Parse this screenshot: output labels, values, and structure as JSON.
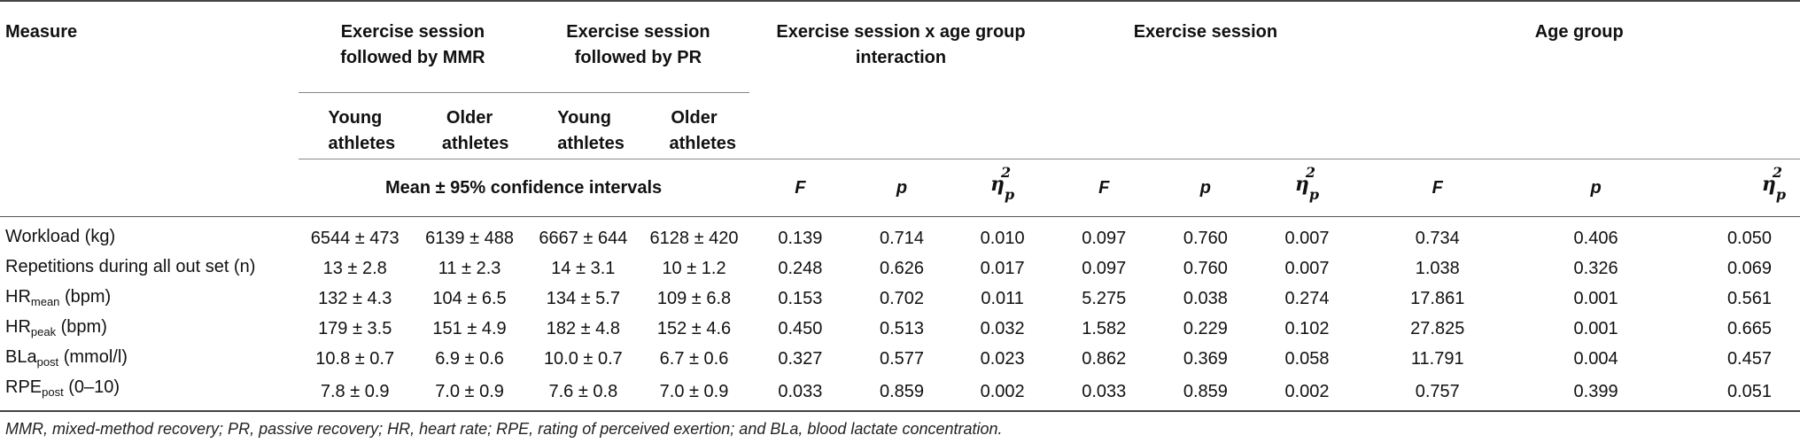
{
  "headers": {
    "measure": "Measure",
    "group_mmr": "Exercise session followed by MMR",
    "group_pr": "Exercise session followed by PR",
    "interaction": "Exercise session x age group interaction",
    "session": "Exercise session",
    "age": "Age group",
    "young": "Young athletes",
    "older": "Older athletes",
    "mean_ci": "Mean ± 95% confidence intervals",
    "F": "F",
    "p": "p",
    "eta": "η",
    "eta_sup": "2",
    "eta_sub": "p"
  },
  "rows": [
    {
      "label": "Workload (kg)",
      "label_sub": "",
      "label_suffix": "",
      "mmr_young": "6544 ± 473",
      "mmr_older": "6139 ± 488",
      "pr_young": "6667 ± 644",
      "pr_older": "6128 ± 420",
      "int_F": "0.139",
      "int_p": "0.714",
      "int_eta": "0.010",
      "ses_F": "0.097",
      "ses_p": "0.760",
      "ses_eta": "0.007",
      "age_F": "0.734",
      "age_p": "0.406",
      "age_eta": "0.050"
    },
    {
      "label": "Repetitions during all out set (n)",
      "label_sub": "",
      "label_suffix": "",
      "mmr_young": "13 ± 2.8",
      "mmr_older": "11 ± 2.3",
      "pr_young": "14 ± 3.1",
      "pr_older": "10 ± 1.2",
      "int_F": "0.248",
      "int_p": "0.626",
      "int_eta": "0.017",
      "ses_F": "0.097",
      "ses_p": "0.760",
      "ses_eta": "0.007",
      "age_F": "1.038",
      "age_p": "0.326",
      "age_eta": "0.069"
    },
    {
      "label": "HR",
      "label_sub": "mean",
      "label_suffix": " (bpm)",
      "mmr_young": "132 ± 4.3",
      "mmr_older": "104 ± 6.5",
      "pr_young": "134 ± 5.7",
      "pr_older": "109 ± 6.8",
      "int_F": "0.153",
      "int_p": "0.702",
      "int_eta": "0.011",
      "ses_F": "5.275",
      "ses_p": "0.038",
      "ses_eta": "0.274",
      "age_F": "17.861",
      "age_p": "0.001",
      "age_eta": "0.561"
    },
    {
      "label": "HR",
      "label_sub": "peak",
      "label_suffix": " (bpm)",
      "mmr_young": "179 ± 3.5",
      "mmr_older": "151 ± 4.9",
      "pr_young": "182 ± 4.8",
      "pr_older": "152 ± 4.6",
      "int_F": "0.450",
      "int_p": "0.513",
      "int_eta": "0.032",
      "ses_F": "1.582",
      "ses_p": "0.229",
      "ses_eta": "0.102",
      "age_F": "27.825",
      "age_p": "0.001",
      "age_eta": "0.665"
    },
    {
      "label": "BLa",
      "label_sub": "post",
      "label_suffix": " (mmol/l)",
      "mmr_young": "10.8 ± 0.7",
      "mmr_older": "6.9 ± 0.6",
      "pr_young": "10.0 ± 0.7",
      "pr_older": "6.7 ± 0.6",
      "int_F": "0.327",
      "int_p": "0.577",
      "int_eta": "0.023",
      "ses_F": "0.862",
      "ses_p": "0.369",
      "ses_eta": "0.058",
      "age_F": "11.791",
      "age_p": "0.004",
      "age_eta": "0.457"
    },
    {
      "label": "RPE",
      "label_sub": "post",
      "label_suffix": " (0–10)",
      "mmr_young": "7.8 ± 0.9",
      "mmr_older": "7.0 ± 0.9",
      "pr_young": "7.6 ± 0.8",
      "pr_older": "7.0 ± 0.9",
      "int_F": "0.033",
      "int_p": "0.859",
      "int_eta": "0.002",
      "ses_F": "0.033",
      "ses_p": "0.859",
      "ses_eta": "0.002",
      "age_F": "0.757",
      "age_p": "0.399",
      "age_eta": "0.051"
    }
  ],
  "footnote": "MMR, mixed-method recovery; PR, passive recovery; HR, heart rate; RPE, rating of perceived exertion; and BLa, blood lactate concentration."
}
